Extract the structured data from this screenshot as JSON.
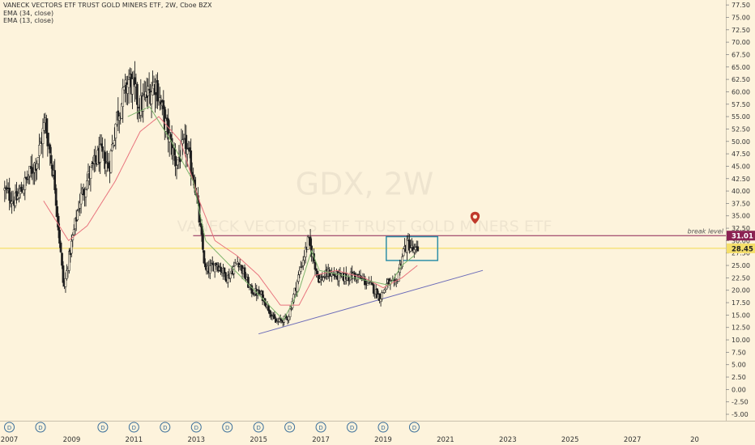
{
  "legend": {
    "line1": "VANECK VECTORS ETF TRUST GOLD MINERS ETF, 2W, Cboe BZX",
    "line2": "EMA (34, close)",
    "line3": "EMA (13, close)"
  },
  "watermark": {
    "symbol": "GDX, 2W",
    "name": "VANECK VECTORS ETF TRUST GOLD MINERS ETF"
  },
  "colors": {
    "background": "#fdf3dc",
    "candles": "#1f1f1f",
    "ema34": "#e8737d",
    "ema13": "#7db36b",
    "trendline": "#6a6ab8",
    "break_line": "#8b2252",
    "current_line": "#f5df6a",
    "box": "#2e8fa8",
    "marker": "#c0392b"
  },
  "chart_data": {
    "type": "candlestick",
    "y_axis": {
      "ticks": [
        "77.50",
        "75.00",
        "72.50",
        "70.00",
        "67.50",
        "65.00",
        "62.50",
        "60.00",
        "57.50",
        "55.00",
        "52.50",
        "50.00",
        "47.50",
        "45.00",
        "42.50",
        "40.00",
        "37.50",
        "35.00",
        "32.50",
        "30.00",
        "27.50",
        "25.00",
        "22.50",
        "20.00",
        "17.50",
        "15.00",
        "12.50",
        "10.00",
        "7.50",
        "5.00",
        "2.50",
        "0.00",
        "-2.50",
        "-5.00"
      ],
      "range": [
        -6.3,
        78.5
      ]
    },
    "x_axis": {
      "ticks": [
        "2007",
        "2009",
        "2011",
        "2013",
        "2015",
        "2017",
        "2019",
        "2021",
        "2023",
        "2025",
        "2027",
        "20"
      ],
      "range": [
        2006.7,
        2030.0
      ]
    },
    "dividend_markers": {
      "label": "D",
      "x": [
        2007.0,
        2008.0,
        2010.0,
        2011.0,
        2012.0,
        2013.0,
        2014.0,
        2015.0,
        2016.0,
        2017.0,
        2018.0,
        2019.0,
        2020.0
      ]
    },
    "price_anchors": [
      [
        2006.85,
        40.0
      ],
      [
        2007.2,
        38.0
      ],
      [
        2007.5,
        41.5
      ],
      [
        2007.9,
        46.5
      ],
      [
        2008.15,
        54.0
      ],
      [
        2008.45,
        42.0
      ],
      [
        2008.75,
        20.0
      ],
      [
        2008.9,
        26.0
      ],
      [
        2009.25,
        38.0
      ],
      [
        2009.55,
        43.0
      ],
      [
        2009.9,
        47.5
      ],
      [
        2010.2,
        45.0
      ],
      [
        2010.45,
        55.0
      ],
      [
        2010.85,
        62.5
      ],
      [
        2011.2,
        57.0
      ],
      [
        2011.7,
        62.0
      ],
      [
        2011.95,
        55.0
      ],
      [
        2012.35,
        45.5
      ],
      [
        2012.65,
        49.5
      ],
      [
        2012.95,
        42.0
      ],
      [
        2013.3,
        23.5
      ],
      [
        2013.65,
        25.5
      ],
      [
        2014.0,
        22.5
      ],
      [
        2014.35,
        26.0
      ],
      [
        2014.75,
        20.0
      ],
      [
        2015.1,
        19.0
      ],
      [
        2015.55,
        13.5
      ],
      [
        2015.95,
        14.5
      ],
      [
        2016.35,
        24.5
      ],
      [
        2016.6,
        30.0
      ],
      [
        2016.95,
        22.0
      ],
      [
        2017.25,
        23.5
      ],
      [
        2017.65,
        22.5
      ],
      [
        2018.1,
        23.0
      ],
      [
        2018.6,
        21.0
      ],
      [
        2018.9,
        18.5
      ],
      [
        2019.15,
        21.5
      ],
      [
        2019.4,
        21.0
      ],
      [
        2019.65,
        28.0
      ],
      [
        2019.8,
        29.5
      ],
      [
        2020.0,
        27.5
      ],
      [
        2020.15,
        28.45
      ]
    ],
    "ema34_anchors": [
      [
        2008.1,
        38.0
      ],
      [
        2008.9,
        30.0
      ],
      [
        2009.5,
        33.0
      ],
      [
        2010.4,
        42.0
      ],
      [
        2011.2,
        52.0
      ],
      [
        2011.8,
        55.0
      ],
      [
        2012.5,
        50.0
      ],
      [
        2013.1,
        38.0
      ],
      [
        2013.6,
        30.0
      ],
      [
        2014.3,
        27.0
      ],
      [
        2015.0,
        23.0
      ],
      [
        2015.7,
        17.0
      ],
      [
        2016.3,
        17.0
      ],
      [
        2016.8,
        23.0
      ],
      [
        2017.5,
        24.0
      ],
      [
        2018.4,
        22.5
      ],
      [
        2019.0,
        20.5
      ],
      [
        2019.6,
        22.5
      ],
      [
        2020.1,
        25.0
      ]
    ],
    "ema13_anchors": [
      [
        2010.8,
        55.0
      ],
      [
        2011.5,
        57.0
      ],
      [
        2012.2,
        50.0
      ],
      [
        2012.9,
        42.0
      ],
      [
        2013.3,
        30.0
      ],
      [
        2015.8,
        14.0
      ],
      [
        2016.3,
        20.0
      ],
      [
        2016.7,
        28.0
      ],
      [
        2016.95,
        24.0
      ],
      [
        2019.2,
        21.0
      ],
      [
        2019.6,
        25.0
      ],
      [
        2020.0,
        27.0
      ]
    ],
    "trendline": {
      "from": [
        2015.0,
        11.2
      ],
      "to": [
        2022.2,
        24.0
      ]
    },
    "break_level": {
      "value": 31.01,
      "label": "break level",
      "price_label": "31.01",
      "x_start": 2012.9
    },
    "current_price": {
      "value": 28.45,
      "label": "28.45"
    },
    "highlight_box": {
      "x": [
        2019.1,
        2020.75
      ],
      "y": [
        26.0,
        30.8
      ]
    },
    "marker": {
      "x": 2021.95,
      "y": 34.5
    }
  }
}
